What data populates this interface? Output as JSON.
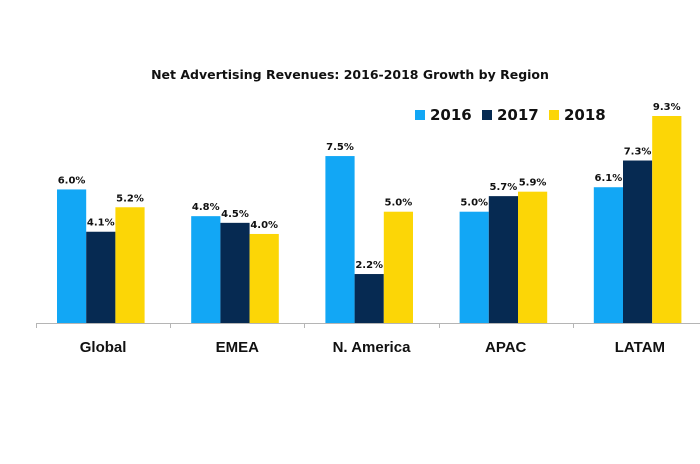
{
  "chart_data": {
    "type": "bar",
    "title": "Net Advertising Revenues: 2016-2018 Growth by Region",
    "xlabel": "",
    "ylabel": "",
    "categories": [
      "Global",
      "EMEA",
      "N. America",
      "APAC",
      "LATAM"
    ],
    "series": [
      {
        "name": "2016",
        "color": "#12a7f5",
        "values": [
          6.0,
          4.8,
          7.5,
          5.0,
          6.1
        ],
        "labels": [
          "6.0%",
          "4.8%",
          "7.5%",
          "5.0%",
          "6.1%"
        ]
      },
      {
        "name": "2017",
        "color": "#062a52",
        "values": [
          4.1,
          4.5,
          2.2,
          5.7,
          7.3
        ],
        "labels": [
          "4.1%",
          "4.5%",
          "2.2%",
          "5.7%",
          "7.3%"
        ]
      },
      {
        "name": "2018",
        "color": "#fcd606",
        "values": [
          5.2,
          4.0,
          5.0,
          5.9,
          9.3
        ],
        "labels": [
          "5.2%",
          "4.0%",
          "5.0%",
          "5.9%",
          "9.3%"
        ]
      }
    ],
    "ylim": [
      0,
      9.3
    ],
    "unit": "%",
    "grid": false,
    "y_axis_visible": false,
    "legend": {
      "position": "top-right",
      "orientation": "horizontal"
    }
  }
}
